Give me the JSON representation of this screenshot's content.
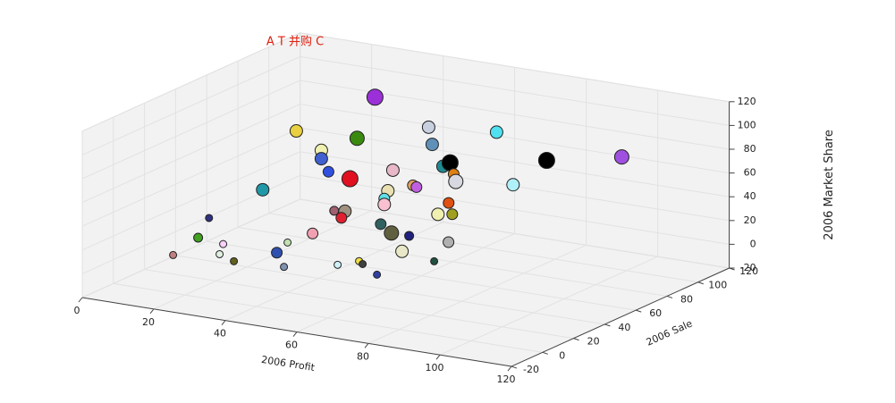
{
  "chart_data": {
    "type": "scatter3d",
    "title": "A T 并购 C",
    "xlabel": "2006 Profit",
    "ylabel": "2006 Sale",
    "zlabel": "2006 Market Share",
    "xlim": [
      0,
      120
    ],
    "ylim": [
      -20,
      120
    ],
    "zlim": [
      -20,
      120
    ],
    "xticks": [
      0,
      20,
      40,
      60,
      80,
      100,
      120
    ],
    "yticks": [
      -20,
      0,
      20,
      40,
      60,
      80,
      100,
      120
    ],
    "zticks": [
      -20,
      0,
      20,
      40,
      60,
      80,
      100,
      120
    ],
    "grid": true,
    "x": [
      34,
      12,
      29,
      49,
      68,
      19,
      50,
      19,
      21,
      27,
      39,
      53,
      55,
      82,
      103,
      56,
      74,
      90,
      20,
      55,
      62,
      63,
      54,
      54,
      72,
      40,
      43,
      42,
      69,
      73,
      5,
      53,
      56,
      74,
      47,
      15,
      22,
      40,
      85,
      72,
      8,
      21,
      37,
      25,
      39,
      54,
      60,
      61,
      81,
      65
    ],
    "y": [
      90,
      90,
      90,
      90,
      90,
      90,
      90,
      90,
      90,
      90,
      90,
      90,
      90,
      90,
      90,
      90,
      50,
      50,
      50,
      50,
      50,
      50,
      50,
      50,
      50,
      50,
      50,
      50,
      50,
      50,
      50,
      50,
      50,
      20,
      20,
      20,
      20,
      20,
      20,
      20,
      20,
      20,
      20,
      20,
      20,
      20,
      20,
      20,
      20,
      20
    ],
    "z": [
      100,
      61,
      63,
      82,
      87,
      48,
      68,
      41,
      31,
      28,
      41,
      51,
      55,
      70,
      83,
      46,
      72,
      77,
      39,
      55,
      63,
      62,
      48,
      43,
      53,
      31,
      32,
      26,
      42,
      44,
      8,
      26,
      20,
      44,
      33,
      14,
      12,
      22,
      44,
      30,
      -4,
      3,
      12,
      -1,
      1,
      10,
      16,
      14,
      26,
      7
    ],
    "sizes": [
      9,
      7,
      8,
      7,
      7,
      7,
      7,
      7,
      6,
      9,
      7,
      7,
      9,
      9,
      8,
      6,
      8,
      7,
      7,
      7,
      6,
      6,
      6,
      7,
      6,
      5,
      7,
      6,
      7,
      6,
      4,
      6,
      8,
      5,
      6,
      5,
      4,
      4,
      6,
      7,
      4,
      4,
      6,
      4,
      4,
      4,
      4,
      4,
      4,
      4
    ],
    "colors": [
      "#9b30d9",
      "#e8d040",
      "#3a8a10",
      "#c8d0e0",
      "#50e0f0",
      "#f0f0b0",
      "#6090b8",
      "#4060d0",
      "#3050e0",
      "#e01020",
      "#e8b8c8",
      "#208890",
      "#000000",
      "#000000",
      "#a050e0",
      "#e08010",
      "#d8d8e0",
      "#b0f0f8",
      "#2098a8",
      "#e8e0b0",
      "#e0a060",
      "#c060e0",
      "#60e0e8",
      "#f8c0d0",
      "#e05010",
      "#a06070",
      "#a09080",
      "#e02030",
      "#f0f0b0",
      "#a0a020",
      "#303080",
      "#306060",
      "#606040",
      "#202080",
      "#f0a0b0",
      "#40a020",
      "#f8d0f8",
      "#c0e0b0",
      "#b0b0b0",
      "#e8e8c8",
      "#c08080",
      "#e0f0e0",
      "#3050b0",
      "#606020",
      "#8090b0",
      "#d0f0f8",
      "#f0e040",
      "#404040",
      "#205040",
      "#3040a0"
    ]
  }
}
